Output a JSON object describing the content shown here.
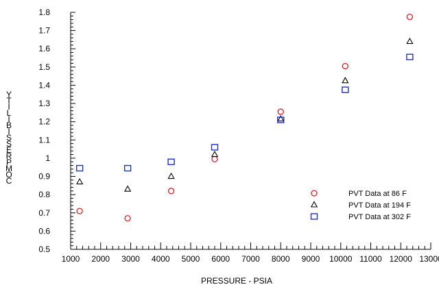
{
  "chart_data": {
    "type": "scatter",
    "title": "",
    "xlabel": "PRESSURE - PSIA",
    "ylabel": "COMPRESSIBILITY",
    "xlim": [
      1000,
      13000
    ],
    "ylim": [
      0.5,
      1.8
    ],
    "xticks": [
      1000,
      2000,
      3000,
      4000,
      5000,
      6000,
      7000,
      8000,
      9000,
      10000,
      11000,
      12000,
      13000
    ],
    "yticks": [
      0.5,
      0.6,
      0.7,
      0.8,
      0.9,
      1,
      1.1,
      1.2,
      1.3,
      1.4,
      1.5,
      1.6,
      1.7,
      1.8
    ],
    "grid": false,
    "legend_position": "bottom-right",
    "series": [
      {
        "name": "PVT Data at 86 F",
        "marker": "circle",
        "color": "#e31a1c",
        "x": [
          1300,
          2900,
          4350,
          5800,
          8000,
          10150,
          12300
        ],
        "y": [
          0.71,
          0.67,
          0.82,
          0.995,
          1.255,
          1.505,
          1.775
        ]
      },
      {
        "name": "PVT Data at 194 F",
        "marker": "triangle",
        "color": "#000000",
        "x": [
          1300,
          2900,
          4350,
          5800,
          8000,
          10150,
          12300
        ],
        "y": [
          0.87,
          0.83,
          0.9,
          1.02,
          1.215,
          1.425,
          1.64
        ]
      },
      {
        "name": "PVT Data at 302 F",
        "marker": "square",
        "color": "#1f2fd0",
        "x": [
          1300,
          2900,
          4350,
          5800,
          8000,
          10150,
          12300
        ],
        "y": [
          0.945,
          0.945,
          0.98,
          1.06,
          1.21,
          1.375,
          1.555
        ]
      }
    ]
  }
}
